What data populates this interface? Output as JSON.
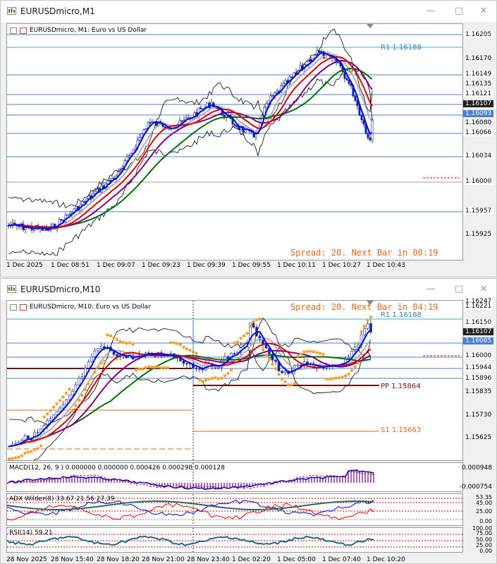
{
  "top": {
    "title": "EURUSDmicro,M1",
    "legend": "EURUSDmicro, M1:  Euro vs US Dollar",
    "spread": "Spread: 20. Next Bar in 00:19",
    "r1": "R1 1.16188",
    "price_labels": [
      "1.16205",
      "1.16170",
      "1.16149",
      "1.16135",
      "1.16121",
      "1.16107",
      "1.16093",
      "1.16080",
      "1.16066",
      "1.16034",
      "1.16000",
      "1.15957",
      "1.15925"
    ],
    "time_labels": [
      "1 Dec 2025",
      "1 Dec 08:51",
      "1 Dec 09:07",
      "1 Dec 09:23",
      "1 Dec 09:39",
      "1 Dec 09:55",
      "1 Dec 10:11",
      "1 Dec 10:27",
      "1 Dec 10:43"
    ]
  },
  "bottom": {
    "title": "EURUSDmicro,M10",
    "legend": "EURUSDmicro, M10:  Euro vs US Dollar",
    "spread": "Spread: 20. Next Bar in 04:19",
    "r1": "R1 1.16188",
    "pp": "PP 1.15864",
    "s1": "S1 1.15663",
    "price_labels": [
      "1.16247",
      "1.16221",
      "1.16150",
      "1.16107",
      "1.16065",
      "1.16000",
      "1.15944",
      "1.15896",
      "1.15835",
      "1.15730",
      "1.15625"
    ],
    "time_labels": [
      "28 Nov 2025",
      "28 Nov 15:40",
      "28 Nov 18:20",
      "28 Nov 21:00",
      "28 Nov 23:40",
      "1 Dec 02:20",
      "1 Dec 05:00",
      "1 Dec 07:40",
      "1 Dec 10:20"
    ],
    "macd": {
      "label": "MACD(12, 26, 9 ) 0.000000 0.000000 0.000426 0.000298 0.000128",
      "axis": [
        "0.000948",
        "-0.000754"
      ]
    },
    "adx": {
      "label": "ADX Wilder(8) 33.67 21.56 27.39",
      "axis": [
        "53.35",
        "45.00",
        "25.00",
        "0.00"
      ]
    },
    "rsi": {
      "label": "RSI(14) 59.21",
      "axis": [
        "100.00",
        "75.00",
        "50.00",
        "25.00",
        "0.00"
      ]
    }
  },
  "colors": {
    "accent_blue": "#0000ff",
    "red": "#e00000",
    "green": "#007000",
    "purple": "#800080",
    "orange": "#f5a030",
    "orange_text": "#e06a20"
  }
}
